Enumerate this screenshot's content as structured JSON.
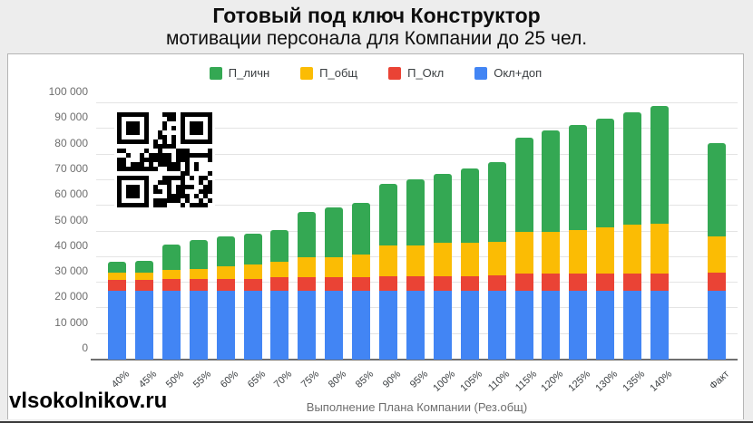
{
  "header": {
    "title_line1": "Готовый под ключ Конструктор",
    "title_line2": "мотивации персонала для Компании до 25 чел."
  },
  "watermark": "vlsokolnikov.ru",
  "chart_data": {
    "type": "bar",
    "stacked": true,
    "grid": true,
    "legend_position": "top",
    "legend": [
      "П_личн",
      "П_общ",
      "П_Окл",
      "Окл+доп"
    ],
    "xlabel": "Выполнение Плана Компании (Рез.общ)",
    "ylim": [
      0,
      100000
    ],
    "yticks": [
      "0",
      "10 000",
      "20 000",
      "30 000",
      "40 000",
      "50 000",
      "60 000",
      "70 000",
      "80 000",
      "90 000",
      "100 000"
    ],
    "categories": [
      "40%",
      "45%",
      "50%",
      "55%",
      "60%",
      "65%",
      "70%",
      "75%",
      "80%",
      "85%",
      "90%",
      "95%",
      "100%",
      "105%",
      "110%",
      "115%",
      "120%",
      "125%",
      "130%",
      "135%",
      "140%",
      "Факт"
    ],
    "series": [
      {
        "name": "Окл+доп",
        "color": "#4285F4",
        "values": [
          27000,
          27000,
          27000,
          27000,
          27000,
          27000,
          27000,
          27000,
          27000,
          27000,
          27000,
          27000,
          27000,
          27000,
          27000,
          27000,
          27000,
          27000,
          27000,
          27000,
          27000,
          27000
        ]
      },
      {
        "name": "П_Окл",
        "color": "#EA4335",
        "values": [
          4000,
          4000,
          4500,
          4500,
          4500,
          4500,
          5000,
          5000,
          5000,
          5000,
          5500,
          5500,
          5500,
          5500,
          6000,
          6500,
          6500,
          6500,
          6500,
          6500,
          6500,
          7000
        ]
      },
      {
        "name": "П_общ",
        "color": "#FBBC04",
        "values": [
          3000,
          3000,
          3500,
          4000,
          5000,
          5500,
          6000,
          8000,
          8000,
          9000,
          12000,
          12000,
          13000,
          13000,
          13000,
          16500,
          16500,
          17000,
          18000,
          19000,
          19500,
          14000
        ]
      },
      {
        "name": "П_личн",
        "color": "#34A853",
        "values": [
          4000,
          4500,
          10000,
          11000,
          11500,
          12000,
          12500,
          17500,
          19500,
          20000,
          24000,
          26000,
          27000,
          29000,
          31000,
          36500,
          39500,
          41000,
          42500,
          44000,
          46000,
          36500
        ]
      }
    ],
    "totals": [
      38000,
      38500,
      45000,
      46500,
      48000,
      49000,
      50500,
      57500,
      59500,
      61000,
      68500,
      70500,
      72500,
      74500,
      77000,
      86500,
      89500,
      91500,
      94000,
      96500,
      99000,
      84500
    ]
  }
}
